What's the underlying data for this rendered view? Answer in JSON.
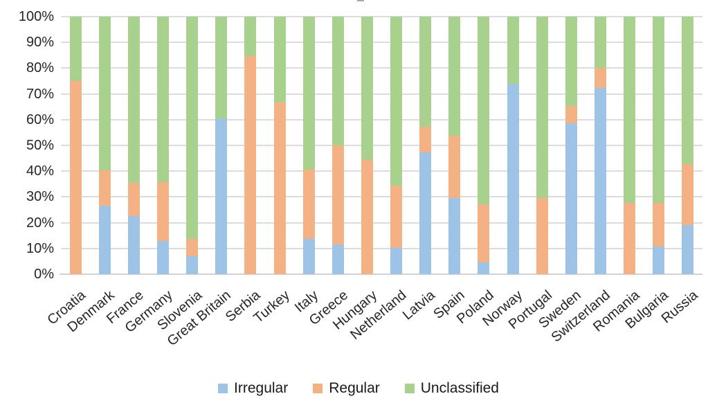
{
  "chart_data": {
    "type": "bar",
    "stacked": true,
    "stacked_mode": "percent",
    "title": "",
    "xlabel": "",
    "ylabel": "",
    "ylim": [
      0,
      100
    ],
    "grid": true,
    "legend_position": "bottom",
    "categories": [
      "Croatia",
      "Denmark",
      "France",
      "Germany",
      "Slovenia",
      "Great Britain",
      "Serbia",
      "Turkey",
      "Italy",
      "Greece",
      "Hungary",
      "Netherland",
      "Latvia",
      "Spain",
      "Poland",
      "Norway",
      "Portugal",
      "Sweden",
      "Switzerland",
      "Romania",
      "Bulgaria",
      "Russia"
    ],
    "series": [
      {
        "name": "Irregular",
        "color": "#9DC3E6",
        "values": [
          0,
          26.5,
          22.7,
          12.8,
          7.0,
          60.4,
          0,
          0,
          13.7,
          11.5,
          0,
          10.1,
          47.3,
          29.6,
          4.5,
          73.9,
          0,
          58.7,
          72.2,
          0,
          10.8,
          19.1
        ]
      },
      {
        "name": "Regular",
        "color": "#F4B183",
        "values": [
          75.0,
          13.7,
          12.7,
          22.9,
          6.7,
          0,
          84.8,
          66.6,
          26.9,
          38.5,
          44.4,
          24.2,
          10.0,
          24.2,
          22.7,
          0,
          29.6,
          6.5,
          7.8,
          27.6,
          16.8,
          23.6
        ]
      },
      {
        "name": "Unclassified",
        "color": "#A9D18E",
        "values": [
          25.0,
          59.8,
          64.6,
          64.3,
          86.3,
          39.6,
          15.2,
          33.4,
          59.4,
          50.0,
          55.6,
          65.7,
          42.7,
          46.2,
          72.8,
          26.1,
          70.4,
          34.8,
          20.0,
          72.4,
          72.4,
          57.3
        ]
      }
    ],
    "y_axis": {
      "tick_labels": [
        "0%",
        "10%",
        "20%",
        "30%",
        "40%",
        "50%",
        "60%",
        "70%",
        "80%",
        "90%",
        "100%"
      ],
      "min": 0,
      "max": 100
    }
  },
  "legend": {
    "items": [
      {
        "label": "Irregular",
        "color": "#9DC3E6"
      },
      {
        "label": "Regular",
        "color": "#F4B183"
      },
      {
        "label": "Unclassified",
        "color": "#A9D18E"
      }
    ]
  },
  "colors": {
    "gridline": "#DCDCDC",
    "axis_line": "#D2D2D2",
    "text": "#262626",
    "background": "#FFFFFF"
  }
}
